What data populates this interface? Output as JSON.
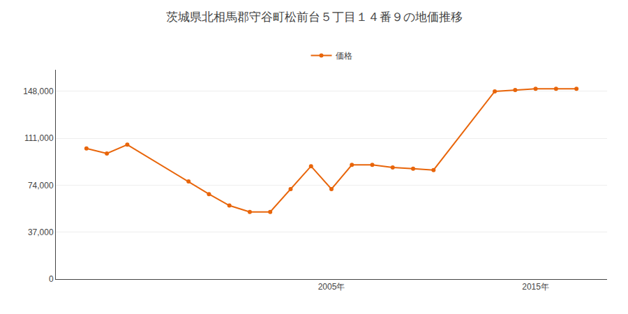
{
  "chart_data": {
    "type": "line",
    "title": "茨城県北相馬郡守谷町松前台５丁目１４番９の地価推移",
    "x": [
      1993,
      1994,
      1995,
      1998,
      1999,
      2000,
      2001,
      2002,
      2003,
      2004,
      2005,
      2006,
      2007,
      2008,
      2009,
      2010,
      2013,
      2014,
      2015,
      2016,
      2017
    ],
    "series": [
      {
        "name": "価格",
        "color": "#e8650a",
        "marker": "circle",
        "values": [
          103000,
          99000,
          106000,
          77000,
          67000,
          58000,
          53000,
          53000,
          71000,
          89000,
          71000,
          90000,
          90000,
          88000,
          87000,
          86000,
          148000,
          149000,
          150000,
          150000,
          150000
        ]
      }
    ],
    "xlim": [
      1991.5,
      2018.5
    ],
    "xticks": [
      {
        "value": 2005,
        "label": "2005年"
      },
      {
        "value": 2015,
        "label": "2015年"
      }
    ],
    "ylim": [
      0,
      165000
    ],
    "yticks": [
      0,
      {
        "value": 37000,
        "label": "37,000"
      },
      {
        "value": 74000,
        "label": "74,000"
      },
      {
        "value": 111000,
        "label": "111,000"
      },
      {
        "value": 148000,
        "label": "148,000"
      }
    ],
    "grid": "y",
    "legend": "top"
  }
}
